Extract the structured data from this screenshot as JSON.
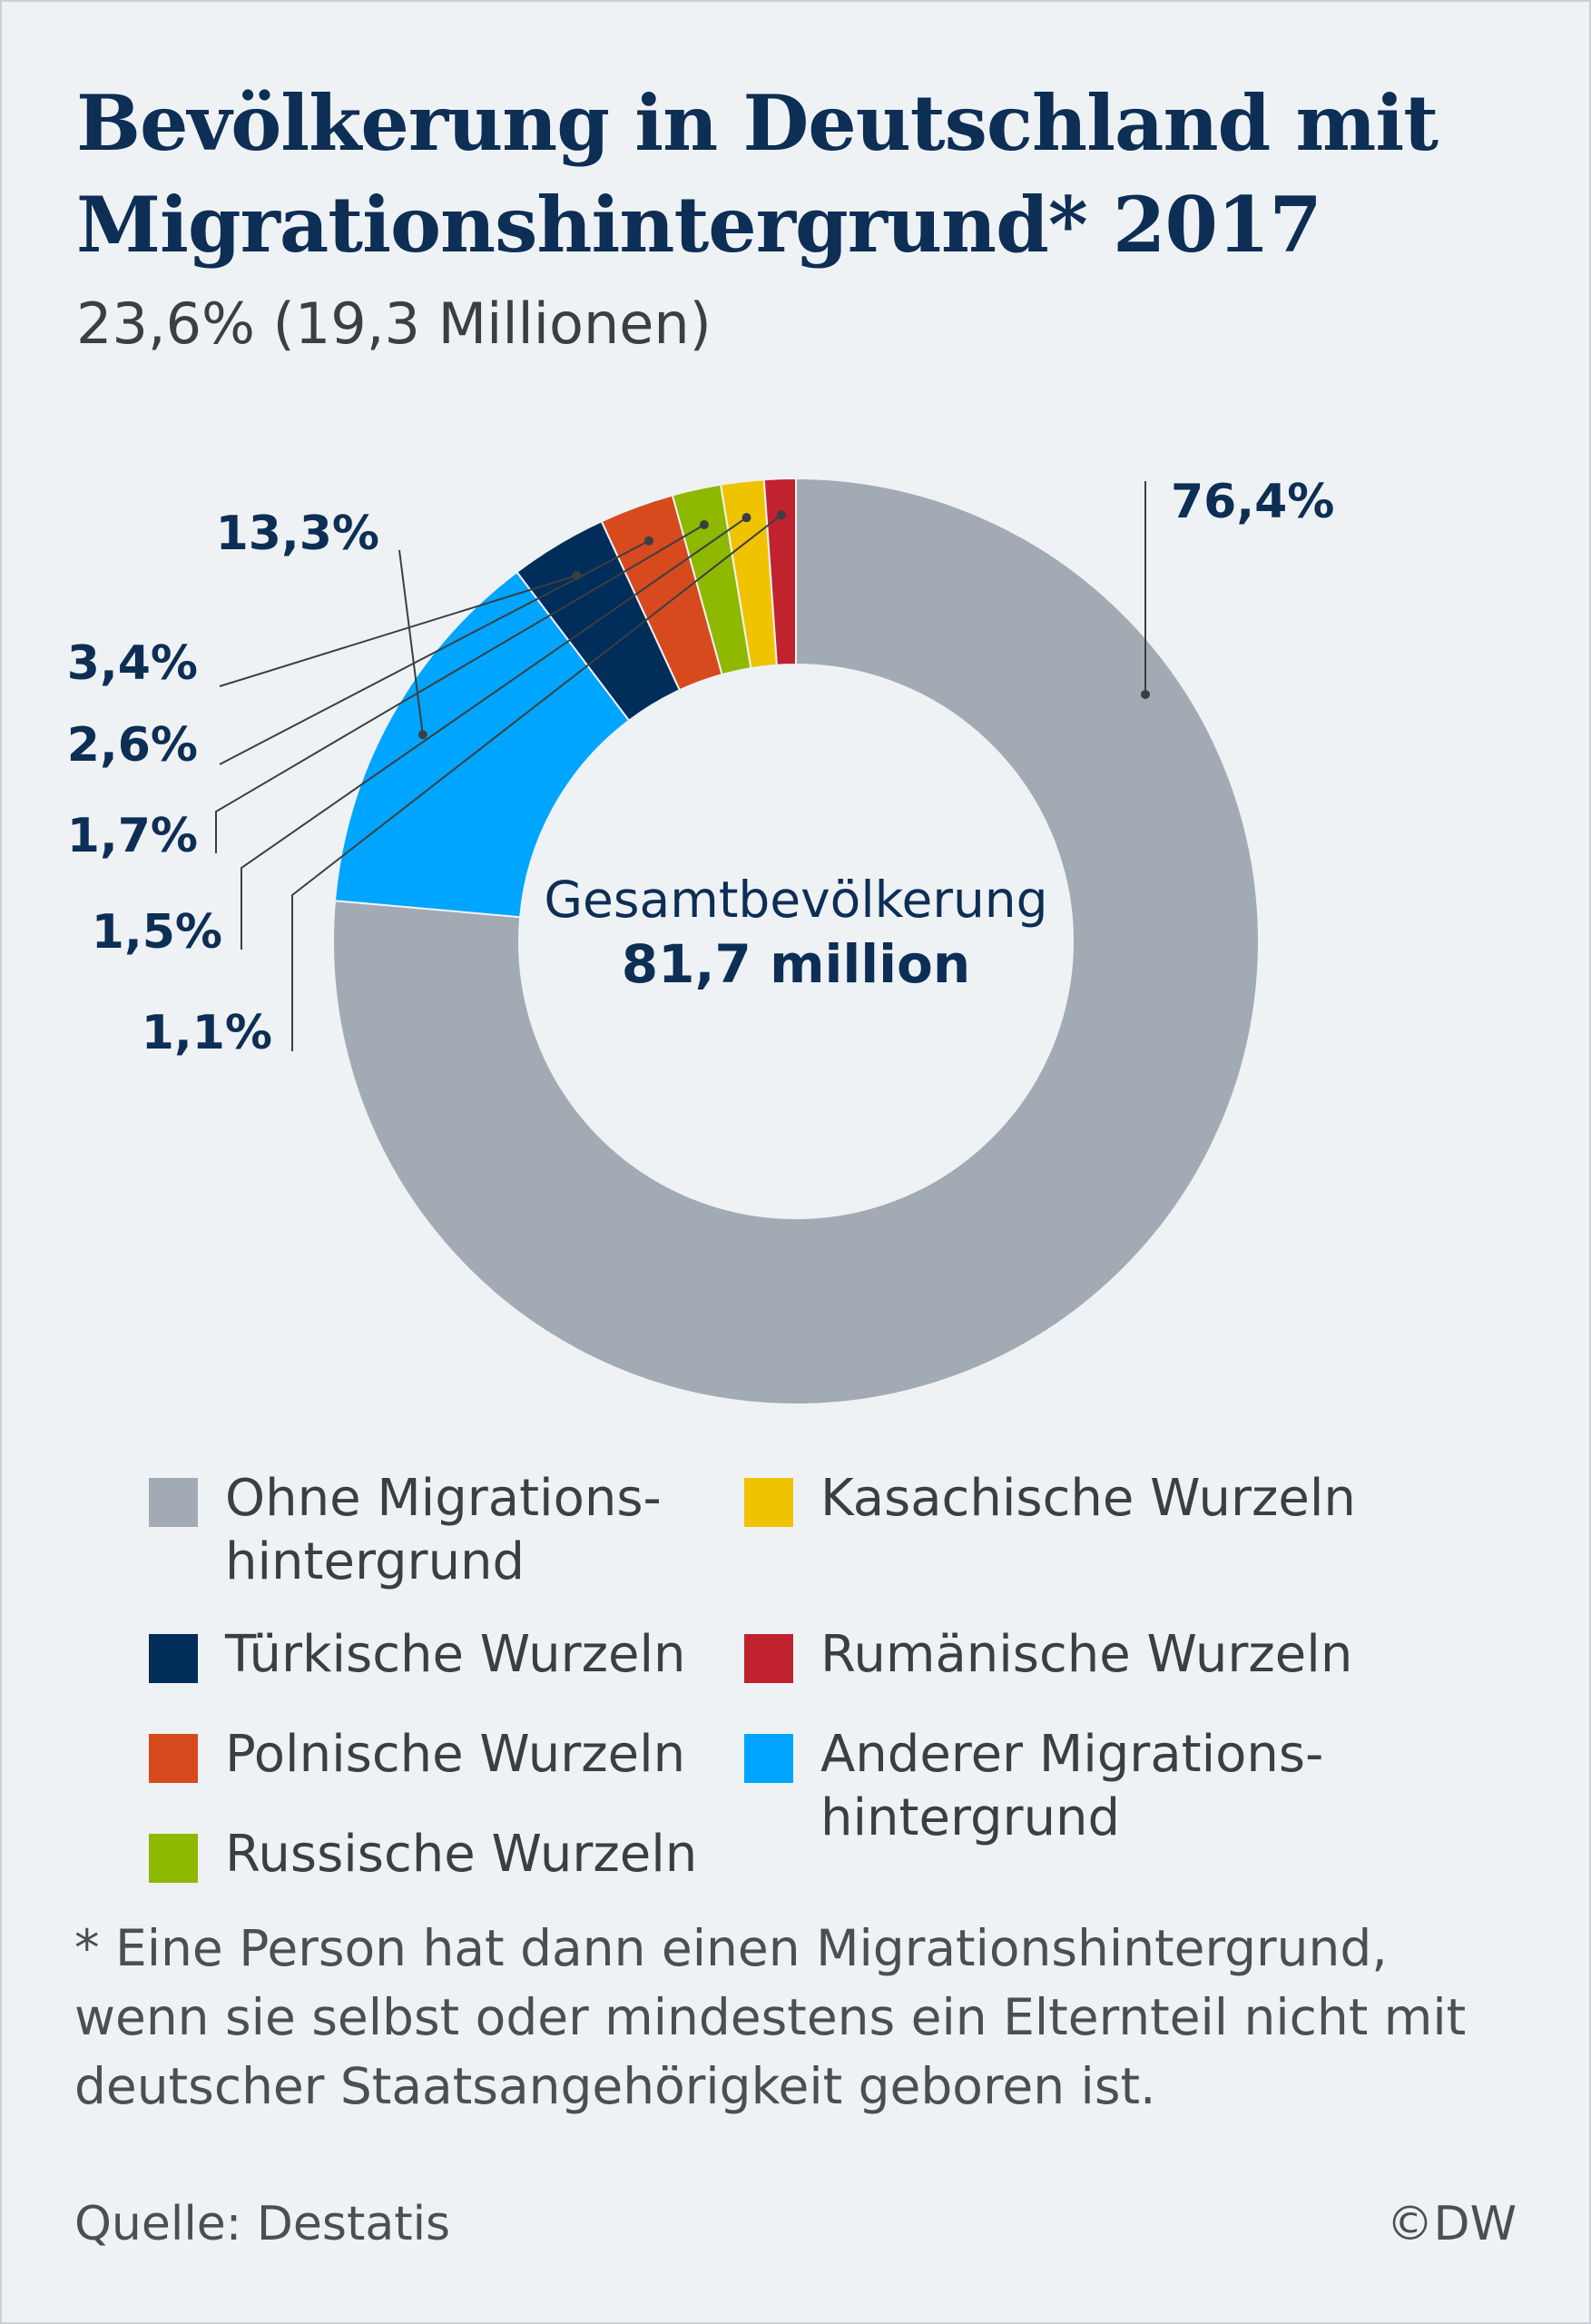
{
  "title_lines": [
    "Bevölkerung in Deutschland mit",
    "Migrationshintergrund* 2017"
  ],
  "subtitle": "23,6% (19,3 Millionen)",
  "center": {
    "label": "Gesamtbevölkerung",
    "value": "81,7 million"
  },
  "chart_data": {
    "type": "pie",
    "title": "Bevölkerung in Deutschland mit Migrationshintergrund* 2017",
    "subtitle": "23,6% (19,3 Millionen)",
    "total_label": "Gesamtbevölkerung 81,7 million",
    "unit": "%",
    "slices": [
      {
        "name": "Ohne Migrationshintergrund",
        "value": 76.4,
        "label": "76,4%",
        "color": "#a2abb3"
      },
      {
        "name": "Anderer Migrationshintergrund",
        "value": 13.3,
        "label": "13,3%",
        "color": "#00a5ff"
      },
      {
        "name": "Türkische Wurzeln",
        "value": 3.4,
        "label": "3,4%",
        "color": "#002d5a"
      },
      {
        "name": "Polnische Wurzeln",
        "value": 2.6,
        "label": "2,6%",
        "color": "#d64a1e"
      },
      {
        "name": "Russische Wurzeln",
        "value": 1.7,
        "label": "1,7%",
        "color": "#8fb800"
      },
      {
        "name": "Kasachische Wurzeln",
        "value": 1.5,
        "label": "1,5%",
        "color": "#f0c300"
      },
      {
        "name": "Rumänische Wurzeln",
        "value": 1.1,
        "label": "1,1%",
        "color": "#c0222e"
      }
    ],
    "legend_placement": "bottom"
  },
  "legend": [
    {
      "lines": [
        "Ohne Migrations-",
        "hintergrund"
      ],
      "color": "#a2abb3"
    },
    {
      "lines": [
        "Türkische Wurzeln"
      ],
      "color": "#002d5a"
    },
    {
      "lines": [
        "Polnische Wurzeln"
      ],
      "color": "#d64a1e"
    },
    {
      "lines": [
        "Russische Wurzeln"
      ],
      "color": "#8fb800"
    },
    {
      "lines": [
        "Kasachische Wurzeln"
      ],
      "color": "#f0c300"
    },
    {
      "lines": [
        "Rumänische Wurzeln"
      ],
      "color": "#c0222e"
    },
    {
      "lines": [
        "Anderer Migrations-",
        "hintergrund"
      ],
      "color": "#00a5ff"
    }
  ],
  "footnote_lines": [
    "* Eine Person hat dann einen Migrationshintergrund,",
    "wenn sie selbst oder mindestens ein Elternteil nicht mit",
    "deutscher Staatsangehörigkeit geboren ist."
  ],
  "source": "Quelle: Destatis",
  "copyright": "©DW"
}
